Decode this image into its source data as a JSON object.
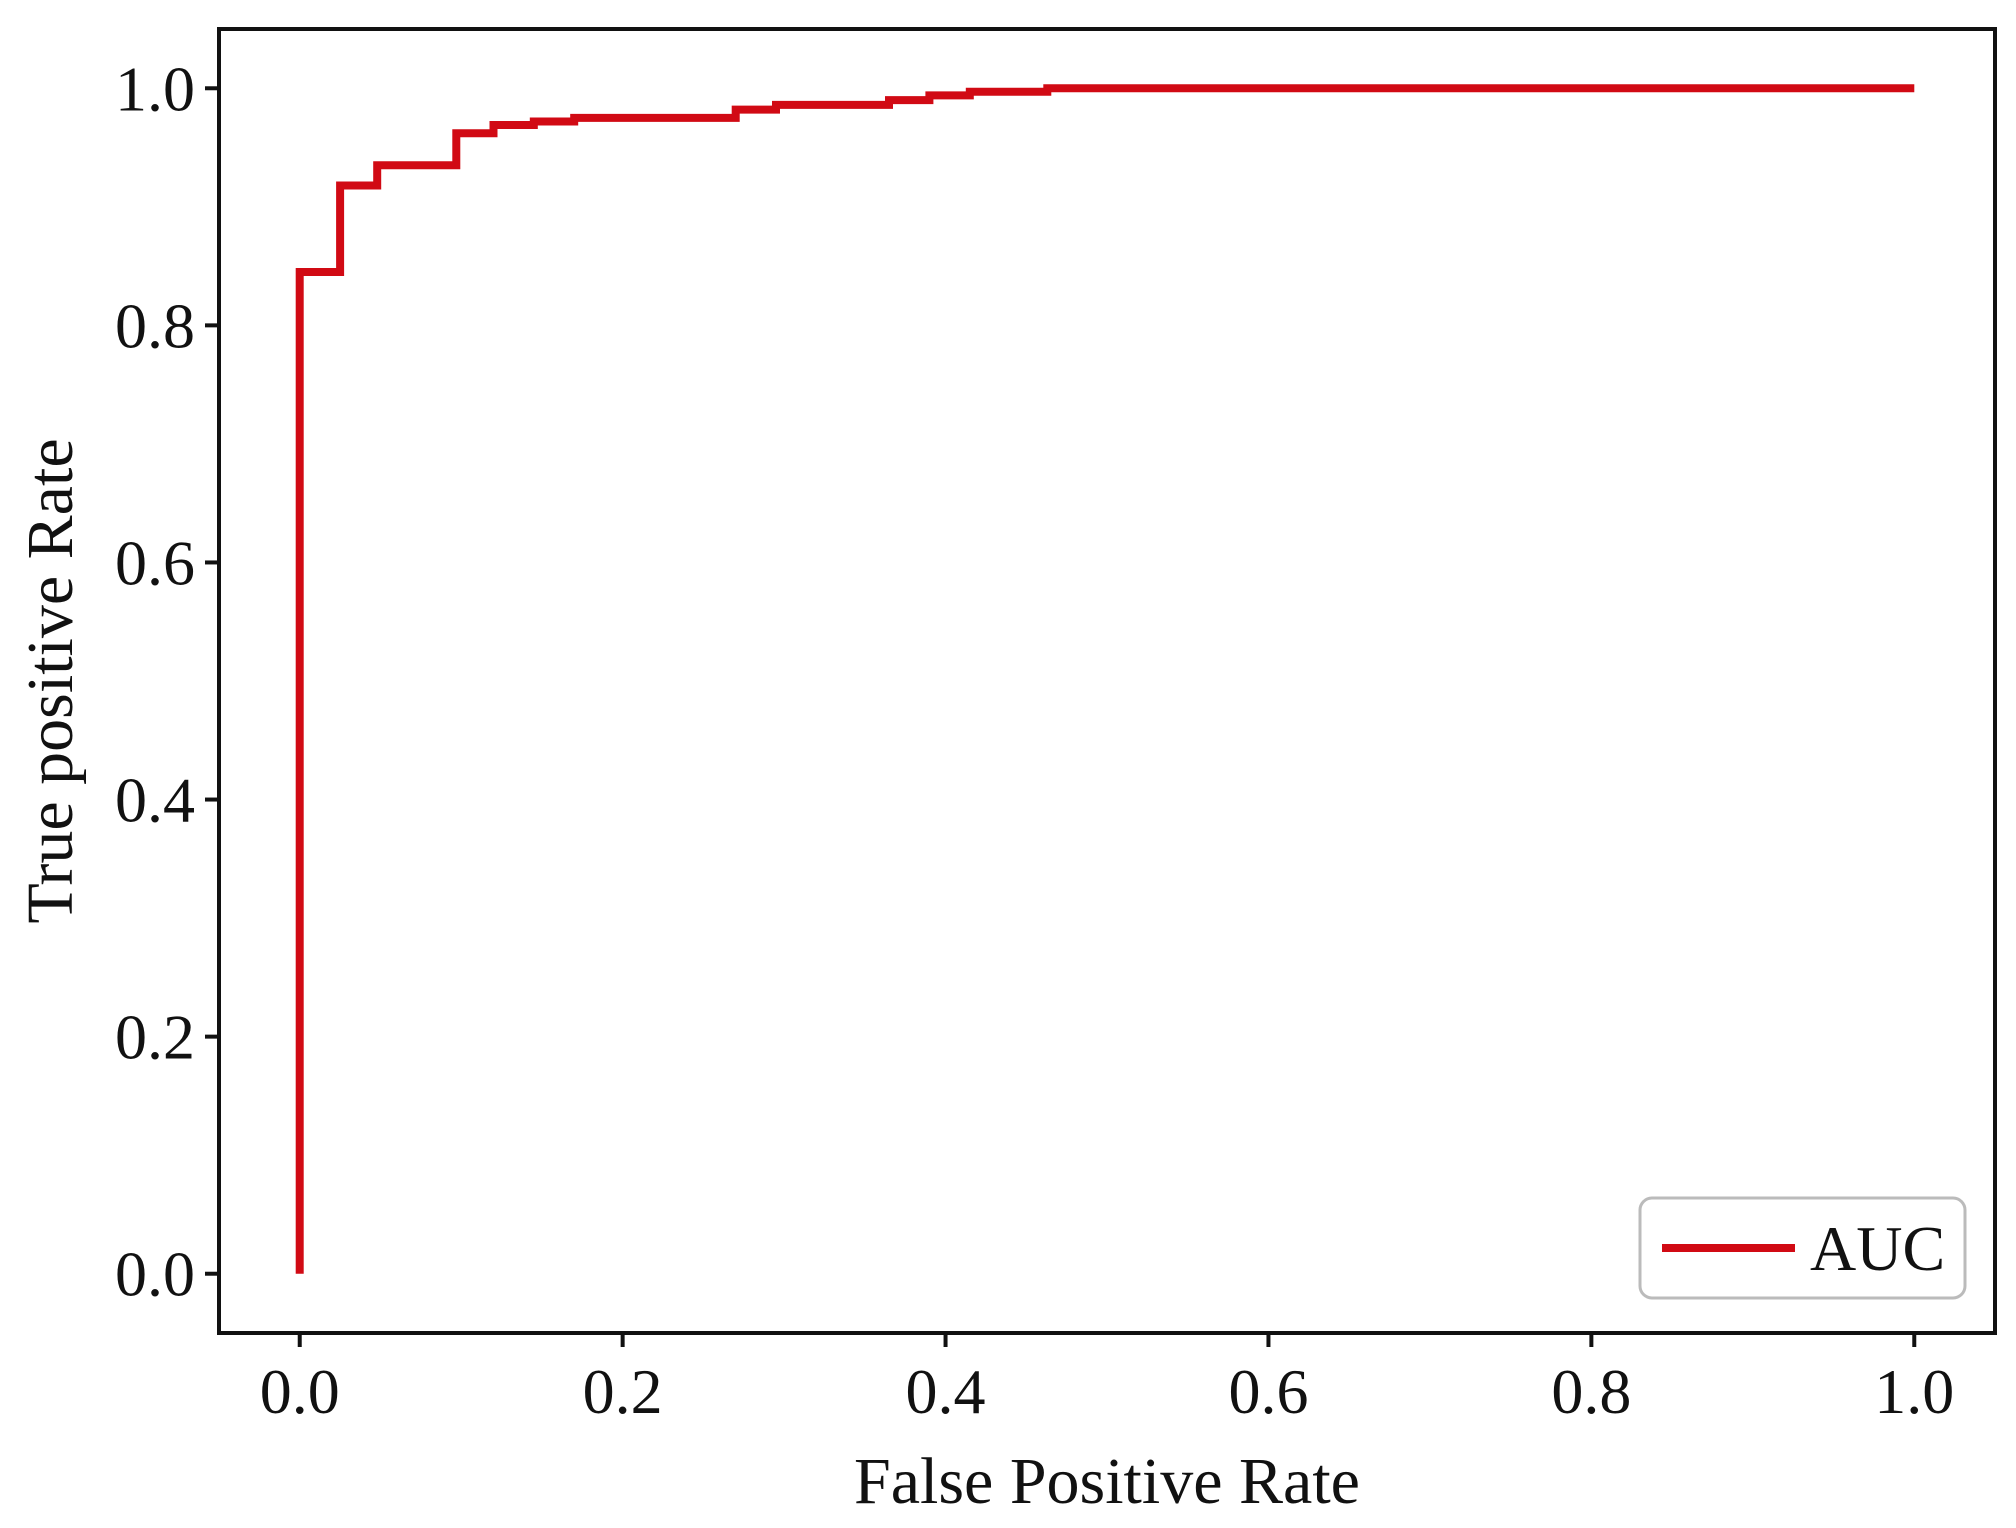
{
  "chart_data": {
    "type": "line",
    "title": "",
    "xlabel": "False Positive Rate",
    "ylabel": "True positive Rate",
    "xlim": [
      -0.05,
      1.05
    ],
    "ylim": [
      -0.05,
      1.05
    ],
    "x_ticks": [
      "0.0",
      "0.2",
      "0.4",
      "0.6",
      "0.8",
      "1.0"
    ],
    "y_ticks": [
      "0.0",
      "0.2",
      "0.4",
      "0.6",
      "0.8",
      "1.0"
    ],
    "grid": false,
    "legend_position": "bottom-right",
    "series": [
      {
        "name": "AUC",
        "color": "#d10a14",
        "x": [
          0.0,
          0.0,
          0.025,
          0.025,
          0.048,
          0.048,
          0.097,
          0.097,
          0.12,
          0.12,
          0.145,
          0.145,
          0.17,
          0.17,
          0.27,
          0.27,
          0.295,
          0.295,
          0.365,
          0.365,
          0.39,
          0.39,
          0.415,
          0.415,
          0.463,
          0.463,
          1.0
        ],
        "y": [
          0.0,
          0.845,
          0.845,
          0.918,
          0.918,
          0.935,
          0.935,
          0.962,
          0.962,
          0.969,
          0.969,
          0.972,
          0.972,
          0.975,
          0.975,
          0.982,
          0.982,
          0.986,
          0.986,
          0.99,
          0.99,
          0.994,
          0.994,
          0.997,
          0.997,
          1.0,
          1.0
        ]
      }
    ]
  }
}
